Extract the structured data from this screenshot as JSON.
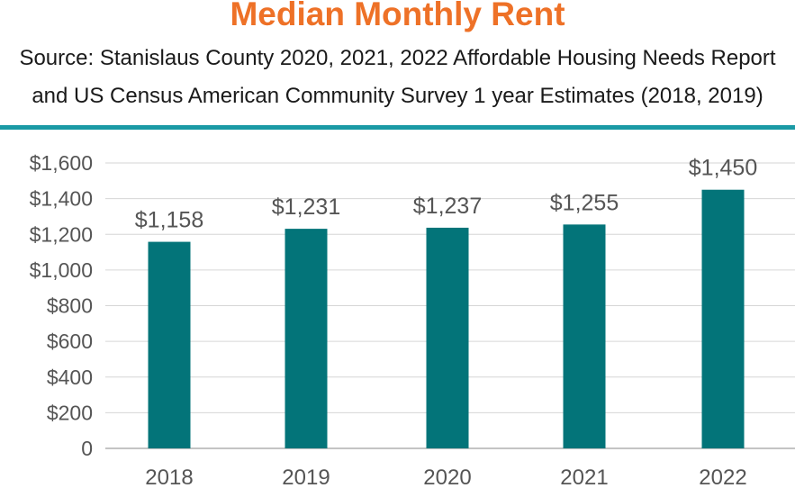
{
  "chart_data": {
    "type": "bar",
    "title": "Median Monthly Rent",
    "subtitle_lines": [
      "Source: Stanislaus County 2020, 2021, 2022 Affordable Housing Needs Report",
      "and US Census American Community Survey 1 year Estimates (2018, 2019)"
    ],
    "categories": [
      "2018",
      "2019",
      "2020",
      "2021",
      "2022"
    ],
    "values": [
      1158,
      1231,
      1237,
      1255,
      1450
    ],
    "data_labels": [
      "$1,158",
      "$1,231",
      "$1,237",
      "$1,255",
      "$1,450"
    ],
    "y_ticks": [
      0,
      200,
      400,
      600,
      800,
      1000,
      1200,
      1400,
      1600
    ],
    "y_tick_labels": [
      "0",
      "$200",
      "$400",
      "$600",
      "$800",
      "$1,000",
      "$1,200",
      "$1,400",
      "$1,600"
    ],
    "ylim": [
      0,
      1600
    ],
    "xlabel": "",
    "ylabel": "",
    "grid": true,
    "bar_color": "#037479",
    "title_color": "#ee7127",
    "rule_color": "#1a9aa5"
  }
}
